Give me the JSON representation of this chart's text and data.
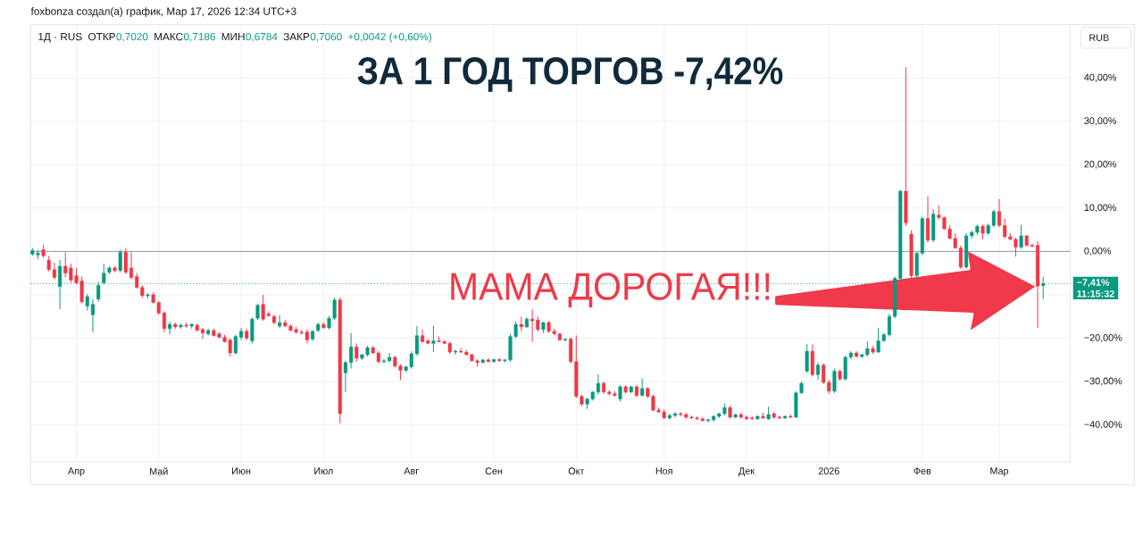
{
  "chart_data": {
    "type": "candlestick",
    "title": "ЗА 1 ГОД ТОРГОВ -7,42%",
    "annotations": [
      "foxbonza создал(а) график, Мар 17, 2026 12:34 UTC+3",
      "1Д · RUS",
      "ОТКР",
      "0,7020",
      "МАКС",
      "0,7186",
      "МИН",
      "0,6784",
      "ЗАКР",
      "0,7060",
      "+0,0042 (+0,60%)",
      "МАМА ДОРОГАЯ!!!",
      "RUB",
      "11:15:32"
    ],
    "categories": [
      null,
      null,
      null,
      null,
      null,
      null,
      null,
      null,
      "Апр",
      null,
      null,
      null,
      null,
      null,
      null,
      null,
      null,
      null,
      null,
      null,
      null,
      null,
      null,
      "Май",
      null,
      null,
      null,
      null,
      null,
      null,
      null,
      null,
      null,
      null,
      null,
      null,
      null,
      null,
      "Июн",
      null,
      null,
      null,
      null,
      null,
      null,
      null,
      null,
      null,
      null,
      null,
      null,
      null,
      null,
      "Июл",
      null,
      null,
      null,
      null,
      null,
      null,
      null,
      null,
      null,
      null,
      null,
      null,
      null,
      null,
      null,
      "Авг",
      null,
      null,
      null,
      null,
      null,
      null,
      null,
      null,
      null,
      null,
      null,
      null,
      null,
      null,
      "Сен",
      null,
      null,
      null,
      null,
      null,
      null,
      null,
      null,
      null,
      null,
      null,
      null,
      null,
      null,
      "Окт",
      null,
      null,
      null,
      null,
      null,
      null,
      null,
      null,
      null,
      null,
      null,
      null,
      null,
      null,
      null,
      "Ноя",
      null,
      null,
      null,
      null,
      null,
      null,
      null,
      null,
      null,
      null,
      null,
      null,
      null,
      null,
      "Дек",
      null,
      null,
      null,
      null,
      null,
      null,
      null,
      null,
      null,
      null,
      null,
      null,
      null,
      null,
      "2026",
      null,
      null,
      null,
      null,
      null,
      null,
      null,
      null,
      null,
      null,
      null,
      null,
      null,
      null,
      null,
      null,
      "Фев",
      null,
      null,
      null,
      null,
      null,
      null,
      null,
      null,
      null,
      null,
      null,
      null,
      null,
      "Мар",
      null,
      null,
      null,
      null,
      null,
      null,
      null,
      null
    ],
    "ohlc": [
      [
        -0.6,
        0.8,
        -1.0,
        0.2
      ],
      [
        -0.8,
        0.4,
        -1.8,
        -0.4
      ],
      [
        0.4,
        1.6,
        -1.4,
        -1.0
      ],
      [
        -2.0,
        -1.0,
        -4.6,
        -4.2
      ],
      [
        -4.2,
        -2.6,
        -6.4,
        -6.0
      ],
      [
        -8.1,
        -2.0,
        -13.3,
        -3.4
      ],
      [
        -3.4,
        -0.2,
        -6.0,
        -5.0
      ],
      [
        -3.8,
        -2.8,
        -7.2,
        -6.6
      ],
      [
        -5.6,
        -3.8,
        -7.6,
        -7.2
      ],
      [
        -6.8,
        -5.8,
        -12.0,
        -11.6
      ],
      [
        -12.6,
        -9.8,
        -13.6,
        -10.4
      ],
      [
        -14.6,
        -11.0,
        -18.6,
        -12.2
      ],
      [
        -11.0,
        -7.0,
        -11.6,
        -7.8
      ],
      [
        -7.2,
        -2.8,
        -7.6,
        -5.0
      ],
      [
        -4.8,
        -3.4,
        -5.2,
        -3.8
      ],
      [
        -3.8,
        -3.4,
        -4.8,
        -4.4
      ],
      [
        -4.4,
        0.4,
        -4.8,
        -0.2
      ],
      [
        -0.2,
        0.8,
        -5.2,
        -4.8
      ],
      [
        -3.8,
        -0.2,
        -6.4,
        -6.0
      ],
      [
        -5.8,
        -5.0,
        -8.6,
        -8.3
      ],
      [
        -8.3,
        -7.8,
        -10.6,
        -10.2
      ],
      [
        -10.2,
        -9.6,
        -10.8,
        -10.0
      ],
      [
        -10.0,
        -9.4,
        -12.0,
        -11.8
      ],
      [
        -11.8,
        -11.4,
        -14.6,
        -14.2
      ],
      [
        -14.2,
        -13.8,
        -18.6,
        -17.8
      ],
      [
        -17.8,
        -16.2,
        -19.1,
        -16.8
      ],
      [
        -16.8,
        -16.4,
        -17.8,
        -17.4
      ],
      [
        -17.4,
        -16.6,
        -17.8,
        -17.0
      ],
      [
        -17.0,
        -16.4,
        -17.6,
        -17.2
      ],
      [
        -17.2,
        -16.6,
        -17.8,
        -16.8
      ],
      [
        -17.0,
        -16.6,
        -18.4,
        -18.2
      ],
      [
        -18.0,
        -17.6,
        -20.2,
        -18.8
      ],
      [
        -19.0,
        -17.8,
        -19.4,
        -18.2
      ],
      [
        -18.2,
        -17.8,
        -19.6,
        -19.4
      ],
      [
        -19.0,
        -18.6,
        -20.0,
        -19.8
      ],
      [
        -19.8,
        -19.2,
        -21.0,
        -20.8
      ],
      [
        -20.4,
        -20.0,
        -24.2,
        -23.4
      ],
      [
        -23.4,
        -19.2,
        -23.8,
        -19.6
      ],
      [
        -19.8,
        -17.6,
        -20.4,
        -18.4
      ],
      [
        -18.4,
        -17.8,
        -20.4,
        -20.0
      ],
      [
        -20.6,
        -15.2,
        -21.2,
        -15.6
      ],
      [
        -15.4,
        -12.0,
        -15.8,
        -12.4
      ],
      [
        -12.2,
        -10.0,
        -16.0,
        -15.6
      ],
      [
        -14.4,
        -13.8,
        -15.0,
        -14.8
      ],
      [
        -15.0,
        -14.6,
        -16.8,
        -16.4
      ],
      [
        -17.2,
        -14.7,
        -17.6,
        -16.4
      ],
      [
        -16.4,
        -15.8,
        -17.4,
        -17.2
      ],
      [
        -17.2,
        -16.8,
        -18.4,
        -18.2
      ],
      [
        -18.0,
        -17.4,
        -19.0,
        -18.6
      ],
      [
        -18.6,
        -18.0,
        -19.2,
        -18.8
      ],
      [
        -18.6,
        -18.0,
        -21.2,
        -20.4
      ],
      [
        -20.2,
        -18.2,
        -20.6,
        -18.4
      ],
      [
        -18.2,
        -16.4,
        -18.6,
        -16.8
      ],
      [
        -16.8,
        -16.4,
        -17.8,
        -17.6
      ],
      [
        -17.6,
        -14.8,
        -18.0,
        -15.4
      ],
      [
        -15.4,
        -10.6,
        -15.8,
        -11.2
      ],
      [
        -11.2,
        -10.6,
        -39.6,
        -37.4
      ],
      [
        -28.0,
        -25.2,
        -32.4,
        -25.6
      ],
      [
        -25.6,
        -18.8,
        -27.0,
        -22.0
      ],
      [
        -22.0,
        -21.2,
        -25.4,
        -24.6
      ],
      [
        -24.6,
        -23.6,
        -25.0,
        -23.8
      ],
      [
        -23.8,
        -21.8,
        -24.2,
        -22.2
      ],
      [
        -22.2,
        -21.8,
        -23.6,
        -23.4
      ],
      [
        -23.4,
        -23.0,
        -25.8,
        -25.4
      ],
      [
        -25.4,
        -24.8,
        -25.8,
        -25.2
      ],
      [
        -25.2,
        -23.4,
        -25.6,
        -24.4
      ],
      [
        -24.4,
        -24.0,
        -26.8,
        -26.4
      ],
      [
        -26.4,
        -26.0,
        -29.6,
        -27.4
      ],
      [
        -27.4,
        -26.4,
        -27.8,
        -26.6
      ],
      [
        -26.6,
        -23.0,
        -27.0,
        -23.6
      ],
      [
        -23.6,
        -17.2,
        -24.0,
        -19.4
      ],
      [
        -19.4,
        -18.0,
        -21.0,
        -20.8
      ],
      [
        -20.6,
        -20.2,
        -21.4,
        -21.2
      ],
      [
        -21.2,
        -17.1,
        -23.2,
        -20.6
      ],
      [
        -20.6,
        -19.6,
        -21.0,
        -20.8
      ],
      [
        -20.8,
        -20.4,
        -21.4,
        -21.2
      ],
      [
        -21.2,
        -20.8,
        -23.6,
        -23.2
      ],
      [
        -23.2,
        -22.6,
        -23.8,
        -23.0
      ],
      [
        -23.0,
        -22.2,
        -23.4,
        -23.2
      ],
      [
        -23.2,
        -22.8,
        -24.0,
        -23.8
      ],
      [
        -23.8,
        -23.6,
        -25.4,
        -25.2
      ],
      [
        -25.2,
        -24.8,
        -26.6,
        -25.6
      ],
      [
        -25.6,
        -24.8,
        -25.8,
        -25.0
      ],
      [
        -25.0,
        -24.6,
        -25.6,
        -25.4
      ],
      [
        -25.4,
        -24.8,
        -25.6,
        -24.9
      ],
      [
        -24.9,
        -24.6,
        -25.4,
        -25.2
      ],
      [
        -25.2,
        -24.8,
        -25.6,
        -25.0
      ],
      [
        -25.0,
        -19.0,
        -25.4,
        -19.6
      ],
      [
        -19.6,
        -16.1,
        -20.0,
        -16.8
      ],
      [
        -16.8,
        -15.0,
        -18.4,
        -17.4
      ],
      [
        -17.4,
        -15.2,
        -17.6,
        -15.6
      ],
      [
        -15.6,
        -13.3,
        -20.8,
        -16.0
      ],
      [
        -15.8,
        -15.0,
        -18.4,
        -18.0
      ],
      [
        -18.0,
        -16.2,
        -18.8,
        -16.4
      ],
      [
        -16.4,
        -16.0,
        -18.8,
        -18.4
      ],
      [
        -18.4,
        -17.8,
        -19.2,
        -19.0
      ],
      [
        -19.0,
        -18.8,
        -20.6,
        -20.4
      ],
      [
        -20.4,
        -20.0,
        -20.8,
        -20.2
      ],
      [
        -20.2,
        -19.8,
        -25.8,
        -25.4
      ],
      [
        -25.4,
        -19.4,
        -33.8,
        -33.4
      ],
      [
        -33.4,
        -33.0,
        -35.6,
        -35.2
      ],
      [
        -35.2,
        -33.8,
        -36.3,
        -34.0
      ],
      [
        -34.0,
        -32.2,
        -34.4,
        -32.4
      ],
      [
        -32.4,
        -28.3,
        -33.0,
        -30.4
      ],
      [
        -30.4,
        -30.0,
        -32.8,
        -32.4
      ],
      [
        -32.4,
        -32.0,
        -33.2,
        -32.8
      ],
      [
        -32.8,
        -32.2,
        -33.4,
        -33.2
      ],
      [
        -34.0,
        -30.8,
        -34.6,
        -31.2
      ],
      [
        -31.2,
        -30.8,
        -32.8,
        -32.4
      ],
      [
        -32.4,
        -31.0,
        -32.6,
        -31.2
      ],
      [
        -31.2,
        -30.8,
        -33.6,
        -33.2
      ],
      [
        -33.2,
        -29.3,
        -33.4,
        -31.6
      ],
      [
        -31.6,
        -31.2,
        -33.8,
        -33.4
      ],
      [
        -33.4,
        -33.0,
        -36.8,
        -36.6
      ],
      [
        -36.6,
        -36.0,
        -37.2,
        -37.0
      ],
      [
        -37.0,
        -36.4,
        -38.6,
        -38.4
      ],
      [
        -38.4,
        -37.4,
        -38.8,
        -37.8
      ],
      [
        -37.8,
        -37.0,
        -38.2,
        -37.4
      ],
      [
        -37.4,
        -37.0,
        -38.0,
        -37.6
      ],
      [
        -37.6,
        -37.2,
        -38.6,
        -38.2
      ],
      [
        -38.2,
        -37.8,
        -38.6,
        -38.4
      ],
      [
        -38.4,
        -38.0,
        -38.8,
        -38.6
      ],
      [
        -38.6,
        -38.2,
        -39.2,
        -39.0
      ],
      [
        -39.0,
        -38.6,
        -39.4,
        -38.8
      ],
      [
        -38.8,
        -37.8,
        -39.2,
        -38.0
      ],
      [
        -38.0,
        -37.2,
        -38.4,
        -37.4
      ],
      [
        -37.4,
        -35.1,
        -37.8,
        -36.0
      ],
      [
        -36.0,
        -35.6,
        -38.6,
        -38.2
      ],
      [
        -38.2,
        -37.4,
        -38.4,
        -37.6
      ],
      [
        -37.6,
        -37.2,
        -38.6,
        -38.2
      ],
      [
        -38.2,
        -37.8,
        -38.8,
        -38.6
      ],
      [
        -38.4,
        -38.0,
        -38.8,
        -38.6
      ],
      [
        -38.6,
        -37.8,
        -38.8,
        -38.0
      ],
      [
        -38.0,
        -37.2,
        -38.6,
        -38.4
      ],
      [
        -38.6,
        -35.8,
        -38.8,
        -37.6
      ],
      [
        -37.4,
        -37.0,
        -38.6,
        -38.2
      ],
      [
        -38.2,
        -37.8,
        -38.6,
        -38.4
      ],
      [
        -38.4,
        -37.8,
        -38.6,
        -38.0
      ],
      [
        -38.0,
        -37.6,
        -38.4,
        -38.2
      ],
      [
        -38.2,
        -32.2,
        -38.4,
        -32.6
      ],
      [
        -32.6,
        -30.0,
        -32.8,
        -30.4
      ],
      [
        -27.6,
        -21.4,
        -28.0,
        -23.0
      ],
      [
        -23.0,
        -21.4,
        -28.8,
        -28.4
      ],
      [
        -28.4,
        -25.6,
        -29.6,
        -26.2
      ],
      [
        -26.2,
        -25.8,
        -30.6,
        -30.2
      ],
      [
        -30.2,
        -29.6,
        -32.8,
        -32.2
      ],
      [
        -32.2,
        -27.0,
        -32.6,
        -27.6
      ],
      [
        -27.6,
        -27.2,
        -29.8,
        -29.4
      ],
      [
        -29.4,
        -24.0,
        -29.8,
        -24.4
      ],
      [
        -24.4,
        -23.0,
        -24.8,
        -23.4
      ],
      [
        -23.4,
        -23.0,
        -24.4,
        -24.2
      ],
      [
        -24.2,
        -23.6,
        -24.6,
        -23.8
      ],
      [
        -23.8,
        -20.8,
        -24.2,
        -22.4
      ],
      [
        -22.4,
        -21.8,
        -23.6,
        -23.2
      ],
      [
        -23.2,
        -17.6,
        -23.4,
        -20.6
      ],
      [
        -20.6,
        -18.8,
        -20.8,
        -19.2
      ],
      [
        -19.2,
        -14.4,
        -19.6,
        -15.0
      ],
      [
        -15.0,
        -5.8,
        -15.4,
        -6.2
      ],
      [
        -6.2,
        14.2,
        -6.8,
        13.9
      ],
      [
        13.9,
        42.5,
        5.8,
        6.6
      ],
      [
        4.0,
        4.9,
        -6.2,
        -5.6
      ],
      [
        -5.6,
        -0.2,
        -6.0,
        -0.4
      ],
      [
        -0.4,
        8.0,
        -0.8,
        7.6
      ],
      [
        7.6,
        12.7,
        2.0,
        2.6
      ],
      [
        2.6,
        9.7,
        2.2,
        8.6
      ],
      [
        8.4,
        10.6,
        7.4,
        7.8
      ],
      [
        7.8,
        8.0,
        5.0,
        5.2
      ],
      [
        5.2,
        6.0,
        2.8,
        3.0
      ],
      [
        3.0,
        4.2,
        0.6,
        0.8
      ],
      [
        0.8,
        1.4,
        -4.0,
        -3.6
      ],
      [
        -3.6,
        4.2,
        -4.0,
        3.6
      ],
      [
        3.6,
        4.8,
        3.0,
        4.4
      ],
      [
        4.4,
        6.2,
        3.8,
        5.8
      ],
      [
        5.8,
        6.2,
        2.8,
        4.2
      ],
      [
        4.2,
        6.4,
        3.8,
        6.0
      ],
      [
        6.0,
        9.6,
        5.6,
        9.2
      ],
      [
        9.2,
        12.1,
        5.6,
        6.0
      ],
      [
        6.0,
        7.6,
        3.0,
        3.4
      ],
      [
        3.4,
        4.2,
        2.6,
        2.8
      ],
      [
        2.8,
        3.2,
        -1.2,
        1.0
      ],
      [
        1.0,
        6.1,
        0.6,
        3.6
      ],
      [
        3.6,
        3.8,
        1.2,
        1.4
      ],
      [
        1.4,
        1.8,
        1.0,
        1.2
      ],
      [
        1.4,
        2.4,
        -17.6,
        -8.0
      ],
      [
        -7.9,
        -5.8,
        -11.0,
        -7.41
      ]
    ],
    "colors": [
      "#089981",
      "#089981",
      "#f23645",
      "#f23645",
      "#f23645",
      "#089981",
      "#f23645",
      "#f23645",
      "#f23645",
      "#f23645",
      "#089981",
      "#089981",
      "#089981",
      "#089981",
      "#089981",
      "#f23645",
      "#089981",
      "#f23645",
      "#f23645",
      "#f23645",
      "#f23645",
      "#089981",
      "#f23645",
      "#f23645",
      "#f23645",
      "#089981",
      "#f23645",
      "#089981",
      "#f23645",
      "#089981",
      "#f23645",
      "#f23645",
      "#089981",
      "#f23645",
      "#f23645",
      "#f23645",
      "#f23645",
      "#089981",
      "#089981",
      "#f23645",
      "#089981",
      "#089981",
      "#f23645",
      "#f23645",
      "#f23645",
      "#089981",
      "#f23645",
      "#f23645",
      "#f23645",
      "#f23645",
      "#f23645",
      "#089981",
      "#089981",
      "#f23645",
      "#089981",
      "#089981",
      "#f23645",
      "#089981",
      "#089981",
      "#f23645",
      "#089981",
      "#089981",
      "#f23645",
      "#f23645",
      "#089981",
      "#089981",
      "#f23645",
      "#f23645",
      "#089981",
      "#089981",
      "#089981",
      "#f23645",
      "#f23645",
      "#089981",
      "#f23645",
      "#f23645",
      "#f23645",
      "#089981",
      "#f23645",
      "#f23645",
      "#f23645",
      "#f23645",
      "#089981",
      "#f23645",
      "#089981",
      "#f23645",
      "#089981",
      "#089981",
      "#089981",
      "#f23645",
      "#089981",
      "#f23645",
      "#f23645",
      "#089981",
      "#f23645",
      "#f23645",
      "#f23645",
      "#089981",
      "#f23645",
      "#f23645",
      "#f23645",
      "#089981",
      "#089981",
      "#089981",
      "#f23645",
      "#f23645",
      "#f23645",
      "#089981",
      "#f23645",
      "#089981",
      "#f23645",
      "#089981",
      "#f23645",
      "#f23645",
      "#f23645",
      "#f23645",
      "#089981",
      "#089981",
      "#f23645",
      "#f23645",
      "#f23645",
      "#f23645",
      "#f23645",
      "#089981",
      "#089981",
      "#089981",
      "#089981",
      "#f23645",
      "#089981",
      "#f23645",
      "#f23645",
      "#f23645",
      "#089981",
      "#f23645",
      "#089981",
      "#f23645",
      "#f23645",
      "#089981",
      "#f23645",
      "#089981",
      "#089981",
      "#089981",
      "#f23645",
      "#089981",
      "#f23645",
      "#f23645",
      "#089981",
      "#f23645",
      "#089981",
      "#089981",
      "#f23645",
      "#089981",
      "#089981",
      "#f23645",
      "#089981",
      "#089981",
      "#089981",
      "#089981",
      "#089981",
      "#f23645",
      "#f23645",
      "#089981",
      "#089981",
      "#f23645",
      "#089981",
      "#f23645",
      "#f23645",
      "#f23645",
      "#f23645",
      "#f23645",
      "#089981",
      "#089981",
      "#089981",
      "#f23645",
      "#089981",
      "#089981",
      "#f23645",
      "#f23645",
      "#f23645",
      "#f23645",
      "#089981",
      "#f23645",
      "#f23645",
      "#f23645",
      "#089981"
    ],
    "ylim": [
      -48.5,
      52.3
    ],
    "yticks": [
      {
        "value": -40,
        "label": "−40,00%"
      },
      {
        "value": -30,
        "label": "−30,00%"
      },
      {
        "value": -20,
        "label": "−20,00%"
      },
      {
        "value": -10,
        "label": null
      },
      {
        "value": 0,
        "label": "0,00%"
      },
      {
        "value": 10,
        "label": "10,00%"
      },
      {
        "value": 20,
        "label": "20,00%"
      },
      {
        "value": 30,
        "label": "30,00%"
      },
      {
        "value": 40,
        "label": "40,00%"
      }
    ],
    "grid": true,
    "ref_lines": [
      {
        "axis": "y",
        "value": 0,
        "color": "#9598a1"
      },
      {
        "axis": "y",
        "value": -7.41,
        "label": "−7,41%",
        "color": "#089981",
        "line_style": "dotted"
      }
    ]
  }
}
